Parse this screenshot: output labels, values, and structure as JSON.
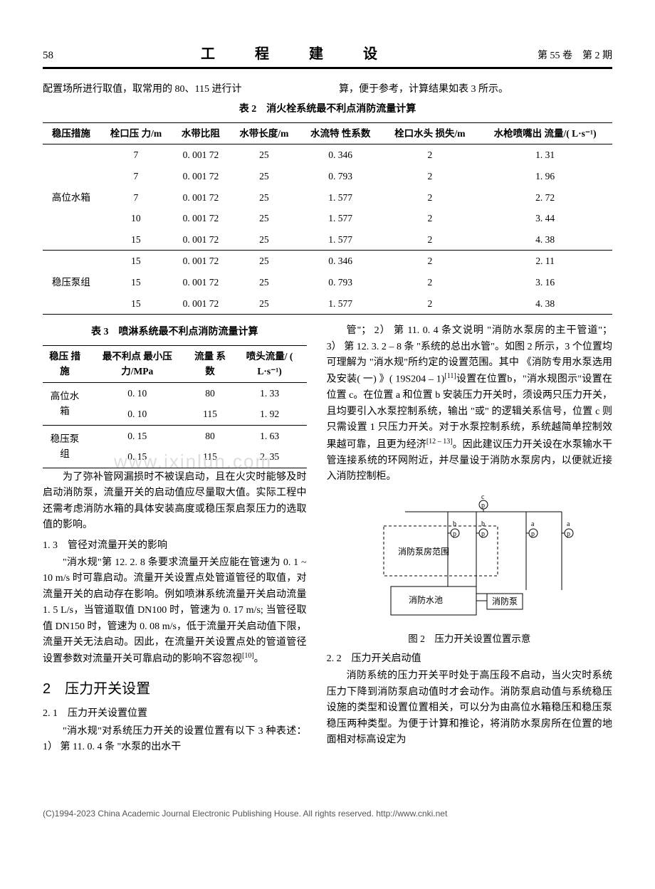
{
  "header": {
    "page_num": "58",
    "journal_title": "工　程　建　设",
    "vol_issue": "第 55 卷　第 2 期"
  },
  "intro_left": "配置场所进行取值，取常用的 80、115 进行计",
  "intro_right": "算，便于参考，计算结果如表 3 所示。",
  "table2": {
    "caption": "表 2　消火栓系统最不利点消防流量计算",
    "columns": [
      "稳压措施",
      "栓口压\n力/m",
      "水带比阻",
      "水带长度/m",
      "水流特\n性系数",
      "栓口水头\n损失/m",
      "水枪喷嘴出\n流量/( L·s⁻¹)"
    ],
    "groups": [
      {
        "label": "高位水箱",
        "rows": [
          [
            "7",
            "0. 001 72",
            "25",
            "0. 346",
            "2",
            "1. 31"
          ],
          [
            "7",
            "0. 001 72",
            "25",
            "0. 793",
            "2",
            "1. 96"
          ],
          [
            "7",
            "0. 001 72",
            "25",
            "1. 577",
            "2",
            "2. 72"
          ],
          [
            "10",
            "0. 001 72",
            "25",
            "1. 577",
            "2",
            "3. 44"
          ],
          [
            "15",
            "0. 001 72",
            "25",
            "1. 577",
            "2",
            "4. 38"
          ]
        ]
      },
      {
        "label": "稳压泵组",
        "rows": [
          [
            "15",
            "0. 001 72",
            "25",
            "0. 346",
            "2",
            "2. 11"
          ],
          [
            "15",
            "0. 001 72",
            "25",
            "0. 793",
            "2",
            "3. 16"
          ],
          [
            "15",
            "0. 001 72",
            "25",
            "1. 577",
            "2",
            "4. 38"
          ]
        ]
      }
    ]
  },
  "table3": {
    "caption": "表 3　喷淋系统最不利点消防流量计算",
    "columns": [
      "稳压\n措施",
      "最不利点\n最小压\n力/MPa",
      "流量\n系数",
      "喷头流量/\n( L·s⁻¹)"
    ],
    "groups": [
      {
        "label": "高位水箱",
        "rows": [
          [
            "0. 10",
            "80",
            "1. 33"
          ],
          [
            "0. 10",
            "115",
            "1. 92"
          ]
        ]
      },
      {
        "label": "稳压泵组",
        "rows": [
          [
            "0. 15",
            "80",
            "1. 63"
          ],
          [
            "0. 15",
            "115",
            "2. 35"
          ]
        ]
      }
    ]
  },
  "left_col": {
    "p1": "为了弥补管网漏损时不被误启动，且在火灾时能够及时启动消防泵，流量开关的启动值应尽量取大值。实际工程中还需考虑消防水箱的具体安装高度或稳压泵启泵压力的选取值的影响。",
    "h13": "1. 3　管径对流量开关的影响",
    "p2": "\"消水规\"第 12. 2. 8 条要求流量开关应能在管速为 0. 1 ~ 10 m/s 时可靠启动。流量开关设置点处管道管径的取值，对流量开关的启动存在影响。例如喷淋系统流量开关启动流量 1. 5 L/s，当管道取值 DN100 时，管速为 0. 17 m/s; 当管径取值 DN150 时，管速为 0. 08 m/s，低于流量开关启动值下限，流量开关无法启动。因此，在流量开关设置点处的管道管径设置参数对流量开关可靠启动的影响不容忽视",
    "p2_sup": "[10]",
    "p2_end": "。",
    "h2": "2　压力开关设置",
    "h21": "2. 1　压力开关设置位置",
    "p3": "\"消水规\"对系统压力开关的设置位置有以下 3 种表述： 1） 第 11. 0. 4 条 \"水泵的出水干"
  },
  "right_col": {
    "p1a": "管\"； 2） 第 11. 0. 4 条文说明 \"消防水泵房的主干管道\"； 3） 第 12. 3. 2 – 8 条 \"系统的总出水管\"。如图 2 所示，3 个位置均可理解为 \"消水规\"所约定的设置范围。其中 《消防专用水泵选用及安装( 一) 》( 19S204 – 1)",
    "p1a_sup": "[11]",
    "p1b": "设置在位置b，\"消水规图示\"设置在位置 c。在位置 a 和位置 b 安装压力开关时，须设两只压力开关，且均要引入水泵控制系统，输出 \"或\" 的逻辑关系信号，位置 c 则只需设置 1 只压力开关。对于水泵控制系统，系统越简单控制效果越可靠，且更为经济",
    "p1b_sup": "[12 – 13]",
    "p1c": "。因此建议压力开关设在水泵输水干管连接系统的环网附近，并尽量设于消防水泵房内，以便就近接入消防控制柜。",
    "fig2_cap": "图 2　压力开关设置位置示意",
    "h22": "2. 2　压力开关启动值",
    "p2": "消防系统的压力开关平时处于高压段不启动，当火灾时系统压力下降到消防泵启动值时才会动作。消防泵启动值与系统稳压设施的类型和设置位置相关，可以分为由高位水箱稳压和稳压泵稳压两种类型。为便于计算和推论，将消防水泵房所在位置的地面相对标高设定为"
  },
  "diagram": {
    "labels": {
      "room": "消防泵房范围",
      "pool": "消防水池",
      "pump": "消防泵",
      "a": "a",
      "b": "b",
      "c": "c",
      "p": "p"
    },
    "colors": {
      "line": "#000000",
      "text": "#000000",
      "bg": "#ffffff"
    }
  },
  "footer": "(C)1994-2023 China Academic Journal Electronic Publishing House. All rights reserved.    http://www.cnki.net",
  "watermark": "www.ixinlun.com"
}
